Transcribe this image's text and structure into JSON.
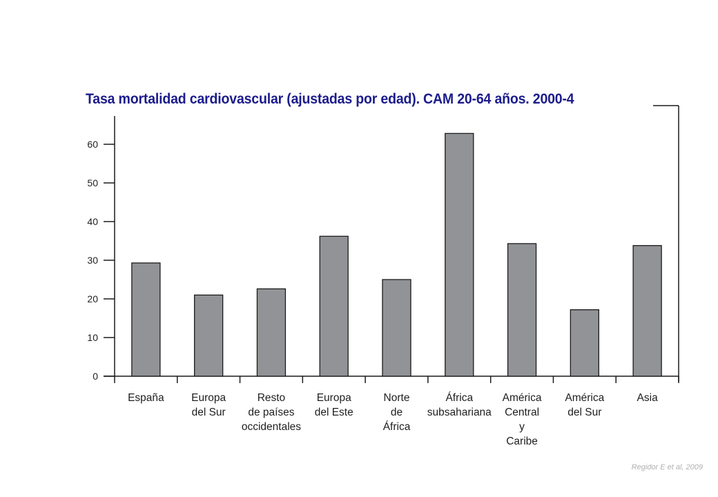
{
  "chart_data": {
    "type": "bar",
    "title": "Tasa mortalidad  cardiovascular (ajustadas por edad). CAM 20-64 años. 2000-4",
    "xlabel": "",
    "ylabel": "",
    "ylim": [
      0,
      66
    ],
    "yticks": [
      0,
      10,
      20,
      30,
      40,
      50,
      60
    ],
    "categories": [
      [
        "España"
      ],
      [
        "Europa",
        "del Sur"
      ],
      [
        "Resto",
        "de países",
        "occidentales"
      ],
      [
        "Europa",
        "del Este"
      ],
      [
        "Norte",
        "de",
        "África"
      ],
      [
        "África",
        "subsahariana"
      ],
      [
        "América",
        "Central",
        "y",
        "Caribe"
      ],
      [
        "América",
        "del Sur"
      ],
      [
        "Asia"
      ]
    ],
    "values": [
      29.3,
      21.0,
      22.6,
      36.2,
      25.0,
      62.8,
      34.3,
      17.2,
      33.8
    ],
    "colors": {
      "bar_fill": "#929397",
      "bar_stroke": "#1a1a1a",
      "axis": "#1a1a1a",
      "title": "#1c1c8c"
    },
    "grid": false,
    "legend": "none"
  },
  "citation": "Regidor E et al, 2009"
}
